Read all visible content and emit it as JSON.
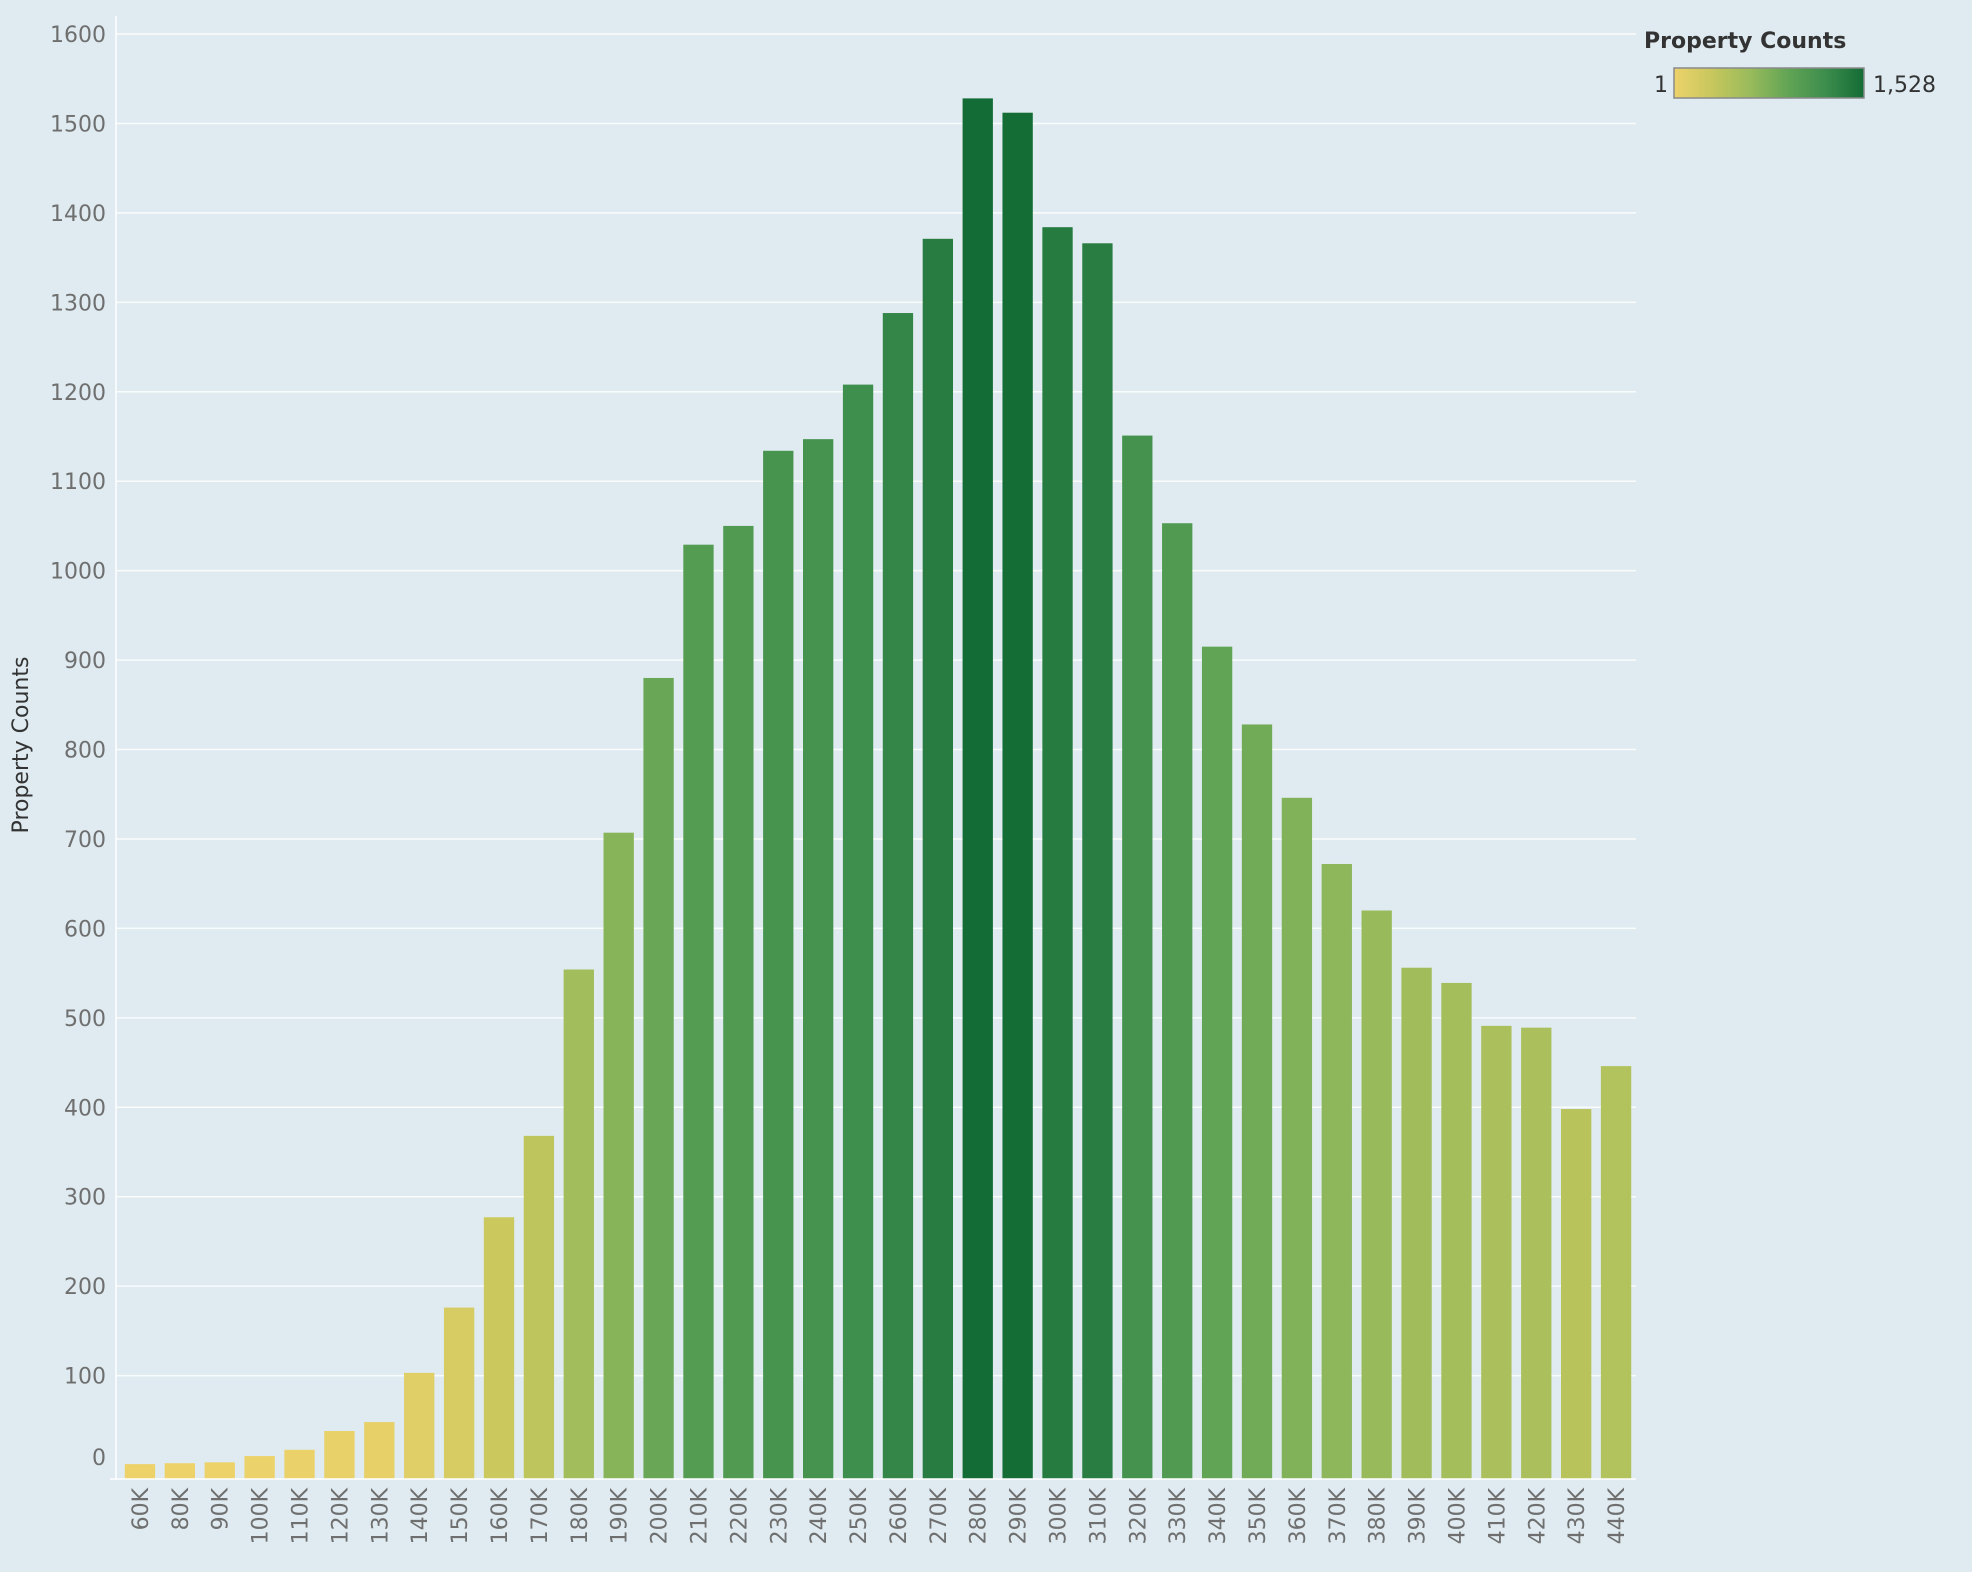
{
  "chart_data": {
    "type": "bar",
    "title": "",
    "xlabel": "",
    "ylabel": "Property Counts",
    "ylim": [
      0,
      1600
    ],
    "yticks": [
      0,
      100,
      200,
      300,
      400,
      500,
      600,
      700,
      800,
      900,
      1000,
      1100,
      1200,
      1300,
      1400,
      1500,
      1600
    ],
    "grid": true,
    "categories": [
      "60K",
      "80K",
      "90K",
      "100K",
      "110K",
      "120K",
      "130K",
      "140K",
      "150K",
      "160K",
      "170K",
      "180K",
      "190K",
      "200K",
      "210K",
      "220K",
      "230K",
      "240K",
      "250K",
      "260K",
      "270K",
      "280K",
      "290K",
      "300K",
      "310K",
      "320K",
      "330K",
      "340K",
      "350K",
      "360K",
      "370K",
      "380K",
      "390K",
      "400K",
      "410K",
      "420K",
      "430K",
      "440K"
    ],
    "values": [
      1,
      2,
      3,
      10,
      17,
      38,
      48,
      103,
      176,
      277,
      368,
      554,
      707,
      880,
      1029,
      1050,
      1134,
      1147,
      1208,
      1288,
      1371,
      1528,
      1512,
      1384,
      1366,
      1151,
      1053,
      915,
      828,
      746,
      672,
      620,
      556,
      539,
      491,
      489,
      398,
      446
    ],
    "legend": {
      "title": "Property Counts",
      "min_label": "1",
      "max_label": "1,528",
      "min_value": 1,
      "max_value": 1528,
      "placement": "top-right"
    },
    "colors": {
      "scale": [
        "#edd26a",
        "#c7c75d",
        "#99bb5b",
        "#62a455",
        "#3c8d4d",
        "#136b35"
      ],
      "background": "#dfebf0",
      "gridline": "#ffffff"
    }
  }
}
